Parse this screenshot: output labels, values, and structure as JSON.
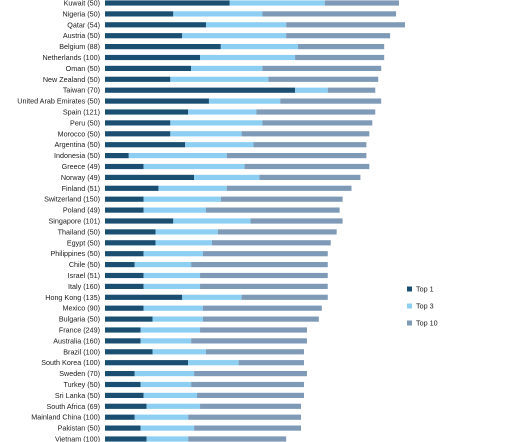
{
  "chart_data": {
    "type": "bar",
    "orientation": "horizontal",
    "stacked": true,
    "grid": false,
    "legend_position": "right",
    "xlim": [
      0,
      100
    ],
    "categories": [
      "Kuwait (50)",
      "Nigeria (50)",
      "Qatar (54)",
      "Austria (50)",
      "Belgium (88)",
      "Netherlands (100)",
      "Oman (50)",
      "New Zealand (50)",
      "Taiwan (70)",
      "United Arab Emirates (50)",
      "Spain (121)",
      "Peru (50)",
      "Morocco (50)",
      "Argentina (50)",
      "Indonesia (50)",
      "Greece (49)",
      "Norway (49)",
      "Finland (51)",
      "Switzerland (150)",
      "Poland (49)",
      "Singapore (101)",
      "Thailand (50)",
      "Egypt (50)",
      "Philippines (50)",
      "Chile (50)",
      "Israel (51)",
      "Italy (160)",
      "Hong Kong (135)",
      "Mexico (90)",
      "Bulgaria (50)",
      "France (249)",
      "Australia (160)",
      "Brazil (100)",
      "South Korea (100)",
      "Sweden (70)",
      "Turkey (50)",
      "Sri Lanka (50)",
      "South Africa (69)",
      "Mainland China (100)",
      "Pakistan (50)",
      "Vietnam (100)"
    ],
    "series": [
      {
        "name": "Top 1",
        "color": "#1b4f72",
        "values": [
          42,
          23,
          34,
          26,
          39,
          32,
          29,
          22,
          64,
          35,
          28,
          22,
          22,
          27,
          8,
          13,
          30,
          18,
          13,
          13,
          23,
          17,
          17,
          13,
          10,
          13,
          13,
          26,
          13,
          16,
          12,
          12,
          16,
          28,
          10,
          12,
          13,
          14,
          10,
          12,
          14
        ]
      },
      {
        "name": "Top 3",
        "color": "#8ccff2",
        "values": [
          32,
          30,
          27,
          35,
          26,
          32,
          24,
          33,
          11,
          24,
          23,
          31,
          24,
          23,
          33,
          34,
          22,
          23,
          26,
          21,
          26,
          21,
          19,
          20,
          19,
          19,
          19,
          20,
          20,
          17,
          20,
          17,
          18,
          17,
          20,
          17,
          18,
          18,
          18,
          18,
          14
        ]
      },
      {
        "name": "Top 10",
        "color": "#7f9ab7",
        "values": [
          25,
          45,
          40,
          35,
          29,
          30,
          40,
          37,
          16,
          34,
          40,
          37,
          43,
          38,
          47,
          42,
          34,
          42,
          41,
          45,
          31,
          40,
          40,
          42,
          46,
          43,
          43,
          29,
          40,
          39,
          36,
          39,
          33,
          22,
          38,
          38,
          36,
          34,
          38,
          36,
          33
        ]
      }
    ]
  }
}
